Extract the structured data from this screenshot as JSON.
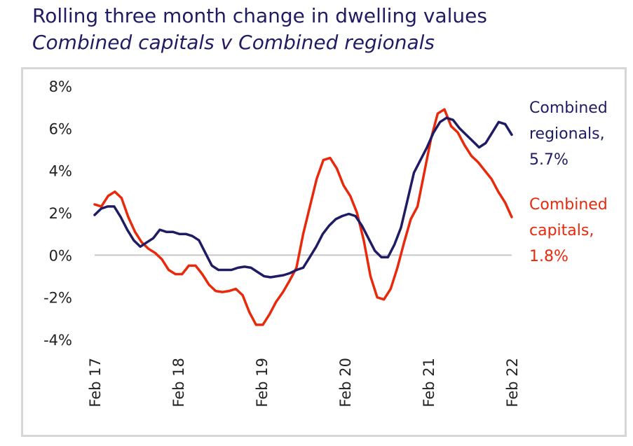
{
  "title": "Rolling three month change in dwelling values",
  "subtitle": "Combined capitals v Combined regionals",
  "colors": {
    "title": "#1f1c64",
    "regionals": "#1f1c64",
    "capitals": "#e8290b",
    "zero_line": "#c8c8c8"
  },
  "chart_data": {
    "type": "line",
    "title": "Rolling three month change in dwelling values",
    "subtitle": "Combined capitals v Combined regionals",
    "xlabel": "",
    "ylabel": "",
    "x_start": "Feb 17",
    "x_end": "Feb 22",
    "x_ticks": [
      "Feb 17",
      "Feb 18",
      "Feb 19",
      "Feb 20",
      "Feb 21",
      "Feb 22"
    ],
    "y_ticks": [
      "8%",
      "6%",
      "4%",
      "2%",
      "0%",
      "-2%",
      "-4%"
    ],
    "ylim": [
      -4,
      8
    ],
    "grid": false,
    "legend": "direct labels at right end of lines",
    "series": [
      {
        "name": "Combined regionals",
        "end_label": [
          "Combined",
          "regionals,",
          "5.7%"
        ],
        "values": [
          1.9,
          2.2,
          2.3,
          2.3,
          1.8,
          1.2,
          0.7,
          0.4,
          0.6,
          0.8,
          1.2,
          1.1,
          1.1,
          1.0,
          1.0,
          0.9,
          0.7,
          0.1,
          -0.5,
          -0.7,
          -0.7,
          -0.7,
          -0.6,
          -0.55,
          -0.6,
          -0.8,
          -1.0,
          -1.05,
          -1.0,
          -0.95,
          -0.85,
          -0.7,
          -0.6,
          -0.1,
          0.4,
          1.0,
          1.4,
          1.7,
          1.85,
          1.95,
          1.85,
          1.4,
          0.8,
          0.2,
          -0.1,
          -0.1,
          0.5,
          1.3,
          2.6,
          3.9,
          4.5,
          5.1,
          5.8,
          6.3,
          6.5,
          6.4,
          6.0,
          5.7,
          5.4,
          5.1,
          5.3,
          5.8,
          6.3,
          6.2,
          5.7
        ]
      },
      {
        "name": "Combined capitals",
        "end_label": [
          "Combined",
          "capitals,",
          "1.8%"
        ],
        "values": [
          2.4,
          2.3,
          2.8,
          3.0,
          2.7,
          1.8,
          1.1,
          0.6,
          0.3,
          0.1,
          -0.2,
          -0.7,
          -0.9,
          -0.9,
          -0.5,
          -0.5,
          -0.9,
          -1.4,
          -1.7,
          -1.75,
          -1.7,
          -1.6,
          -1.9,
          -2.7,
          -3.3,
          -3.3,
          -2.8,
          -2.2,
          -1.75,
          -1.2,
          -0.6,
          1.0,
          2.3,
          3.6,
          4.5,
          4.6,
          4.1,
          3.3,
          2.8,
          2.0,
          0.7,
          -1.0,
          -2.0,
          -2.1,
          -1.6,
          -0.6,
          0.6,
          1.7,
          2.3,
          3.9,
          5.5,
          6.7,
          6.9,
          6.1,
          5.8,
          5.2,
          4.7,
          4.4,
          4.0,
          3.6,
          3.0,
          2.5,
          1.8
        ]
      }
    ]
  }
}
